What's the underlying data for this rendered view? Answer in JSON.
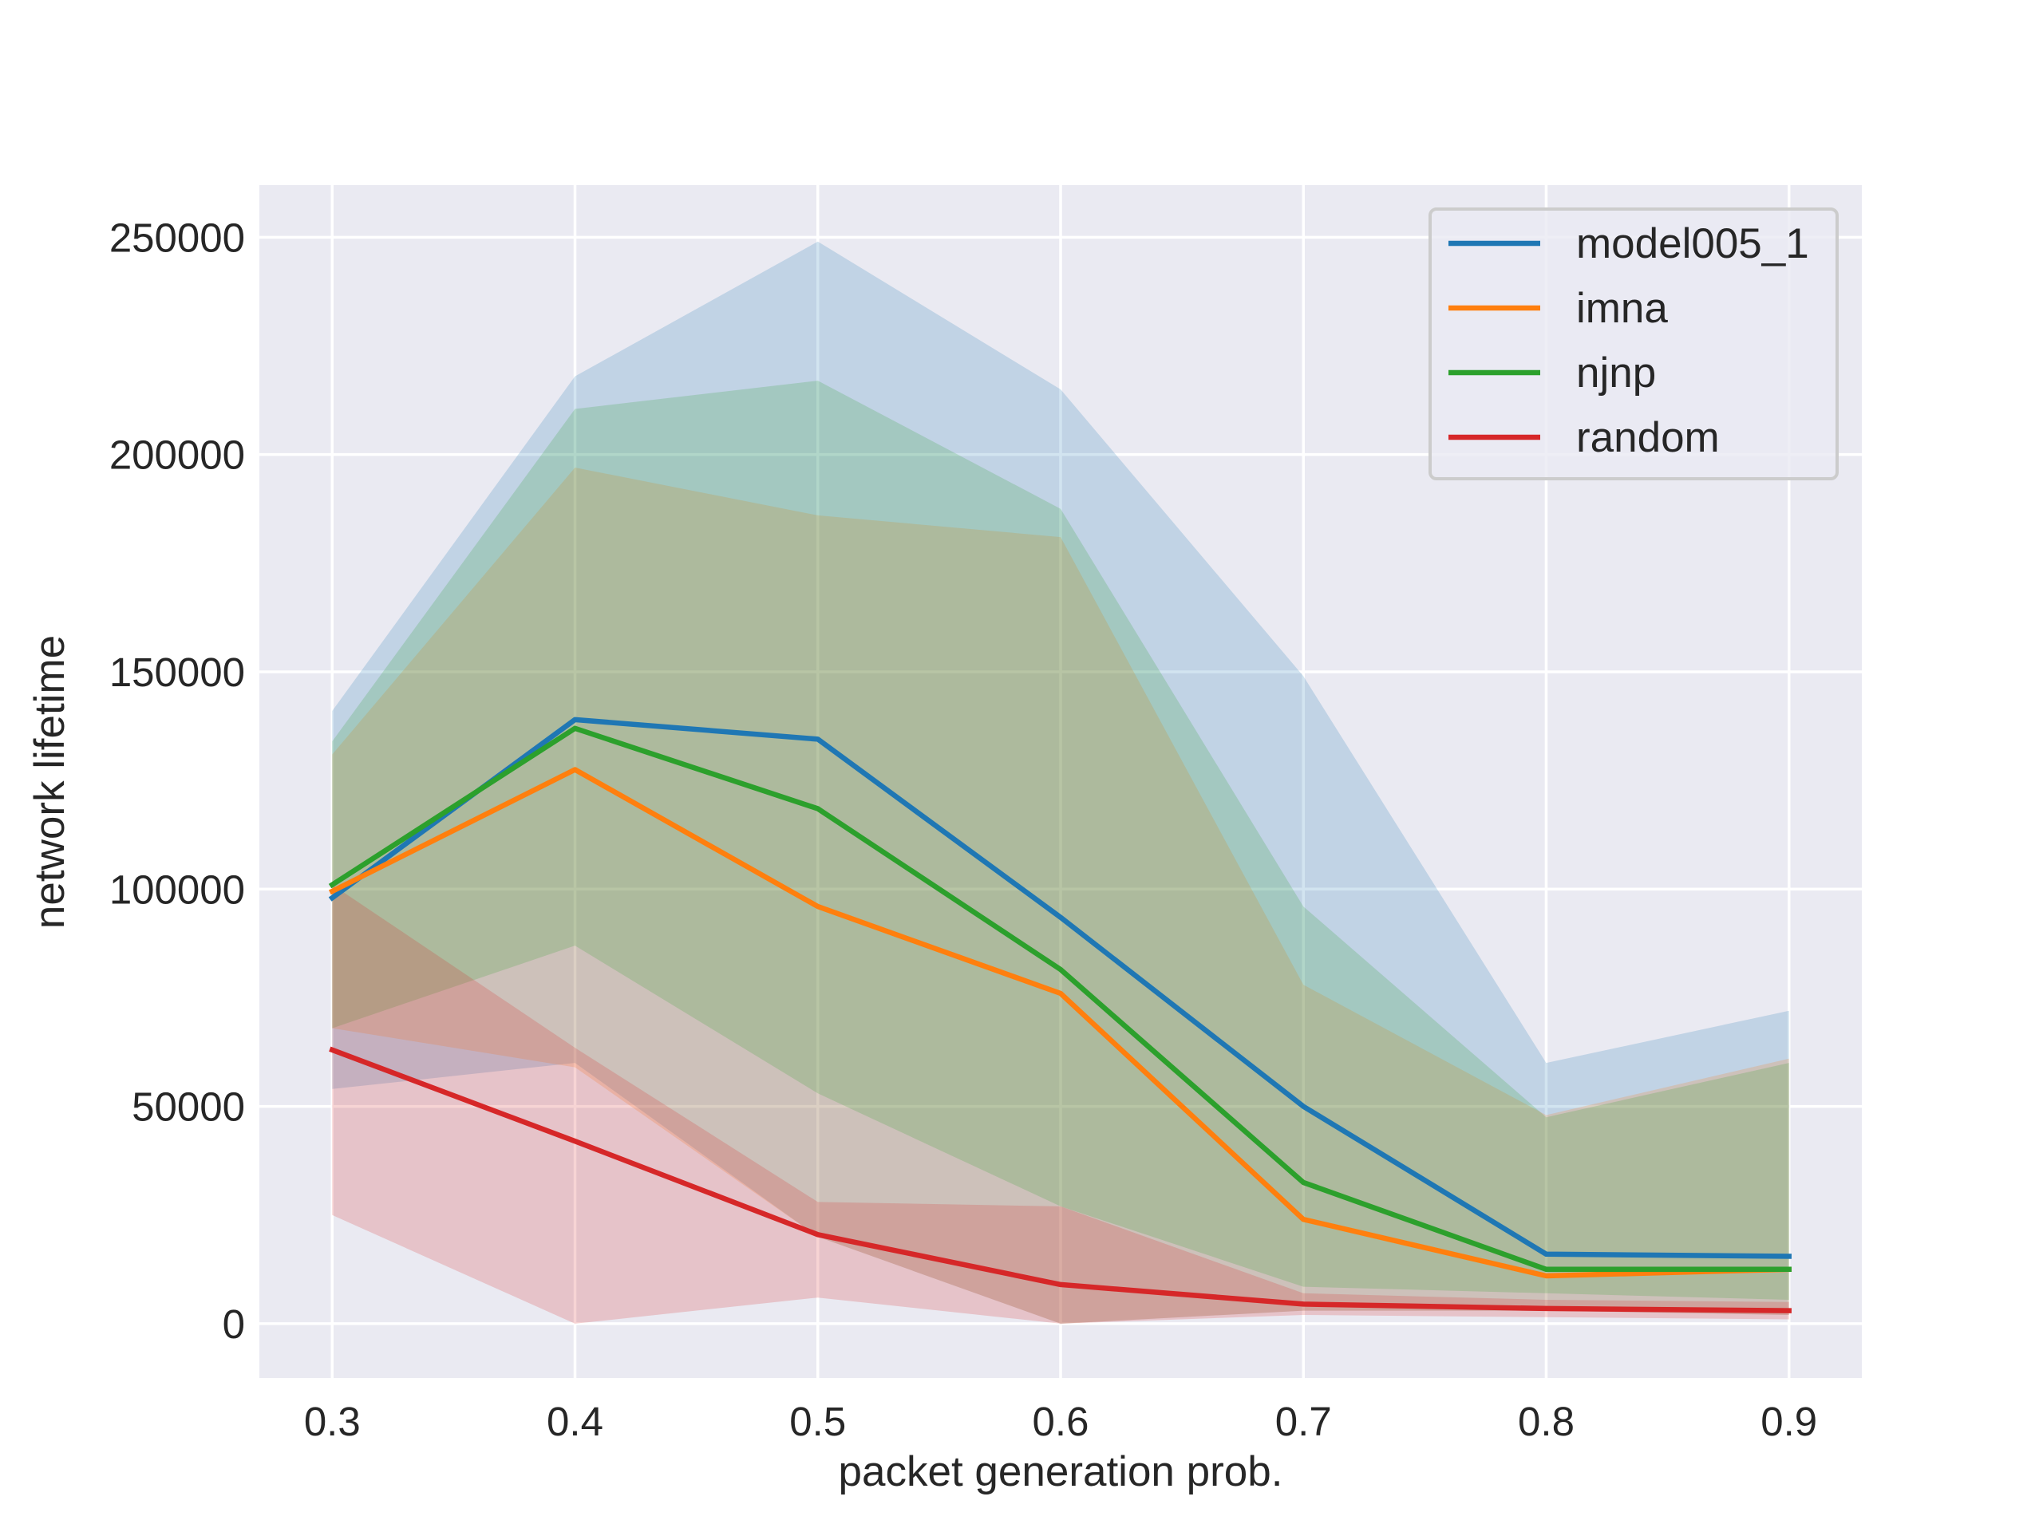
{
  "chart_data": {
    "type": "line",
    "xlabel": "packet generation prob.",
    "ylabel": "network lifetime",
    "x": [
      0.3,
      0.4,
      0.5,
      0.6,
      0.7,
      0.8,
      0.9
    ],
    "x_tick_labels": [
      "0.3",
      "0.4",
      "0.5",
      "0.6",
      "0.7",
      "0.8",
      "0.9"
    ],
    "y_ticks": [
      0,
      50000,
      100000,
      150000,
      200000,
      250000
    ],
    "y_tick_labels": [
      "0",
      "50000",
      "100000",
      "150000",
      "200000",
      "250000"
    ],
    "xlim": [
      0.27,
      0.93
    ],
    "ylim": [
      -12500,
      262000
    ],
    "grid": true,
    "legend_position": "top-right",
    "series": [
      {
        "name": "model005_1",
        "color": "#1f77b4",
        "values": [
          98000,
          139000,
          134500,
          93500,
          50000,
          16000,
          15500
        ],
        "lower": [
          54000,
          60000,
          20000,
          0,
          3000,
          3000,
          2000
        ],
        "upper": [
          141000,
          218000,
          249000,
          215000,
          149000,
          60000,
          72000
        ]
      },
      {
        "name": "imna",
        "color": "#ff7f0e",
        "values": [
          99500,
          127500,
          96000,
          76000,
          24000,
          11000,
          12500
        ],
        "lower": [
          68000,
          59000,
          20000,
          0,
          3000,
          3000,
          2000
        ],
        "upper": [
          131000,
          197000,
          186000,
          181000,
          78000,
          48000,
          61000
        ]
      },
      {
        "name": "njnp",
        "color": "#2ca02c",
        "values": [
          101000,
          137000,
          118500,
          81500,
          32500,
          12500,
          12500
        ],
        "lower": [
          68000,
          87000,
          53000,
          27000,
          8500,
          7000,
          5500
        ],
        "upper": [
          134000,
          210500,
          217000,
          187500,
          96000,
          47500,
          60000
        ]
      },
      {
        "name": "random",
        "color": "#d62728",
        "values": [
          63000,
          42000,
          20500,
          9000,
          4500,
          3500,
          3000
        ],
        "lower": [
          25000,
          0,
          6000,
          0,
          2000,
          1500,
          1000
        ],
        "upper": [
          101000,
          63500,
          28000,
          27000,
          7000,
          5500,
          5000
        ]
      }
    ]
  }
}
